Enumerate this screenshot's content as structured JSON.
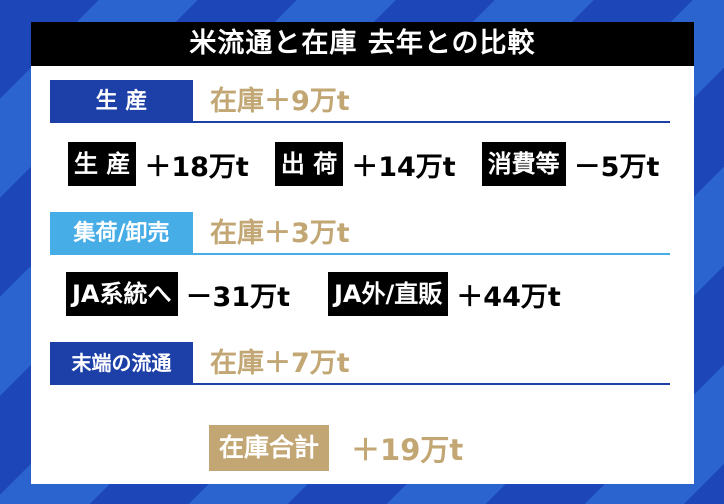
{
  "title": "米流通と在庫 去年との比較",
  "colors": {
    "dark_blue": "#1c3fa8",
    "light_blue": "#47ade6",
    "gold": "#c2a774",
    "black": "#000000"
  },
  "sections": [
    {
      "label": "生 産",
      "value": "在庫＋9万t"
    },
    {
      "label": "集荷/卸売",
      "value": "在庫＋3万t"
    },
    {
      "label": "末端の流通",
      "value": "在庫＋7万t"
    }
  ],
  "production_items": [
    {
      "tag": "生 産",
      "value": "＋18万t"
    },
    {
      "tag": "出 荷",
      "value": "＋14万t"
    },
    {
      "tag": "消費等",
      "value": "－5万t"
    }
  ],
  "wholesale_items": [
    {
      "tag": "JA系統へ",
      "value": "－31万t"
    },
    {
      "tag": "JA外/直販",
      "value": "＋44万t"
    }
  ],
  "total": {
    "label": "在庫合計",
    "value": "＋19万t"
  }
}
